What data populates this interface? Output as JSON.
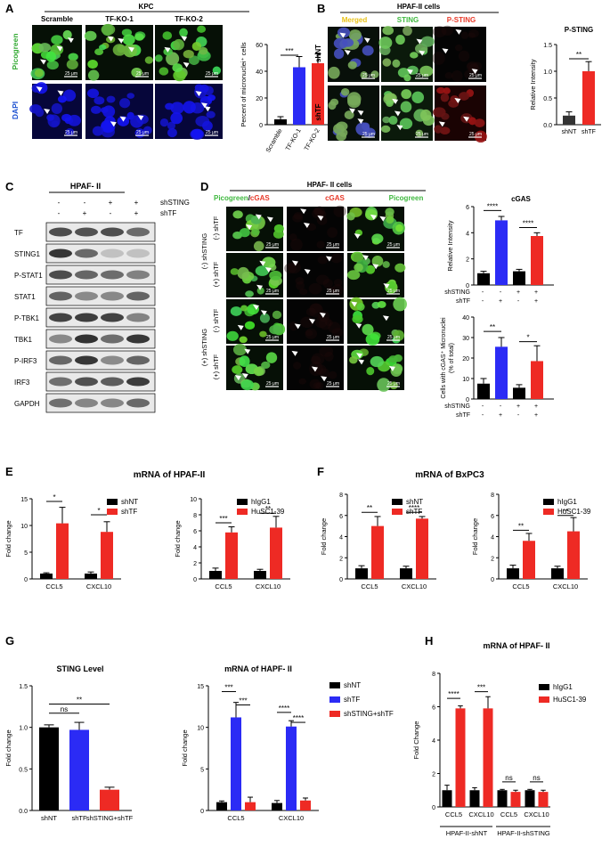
{
  "panels": {
    "A": {
      "letter": "A",
      "group_title": "KPC",
      "columns": [
        "Scramble",
        "TF-KO-1",
        "TF-KO-2"
      ],
      "rows": [
        "Picogreen",
        "DAPI"
      ],
      "scale_bar": "25 μm",
      "chart": {
        "type": "bar",
        "ylabel": "Percent of micronuclei⁺ cells",
        "categories": [
          "Scramble",
          "TF-KO-1",
          "TF-KO-2"
        ],
        "values": [
          4,
          43,
          46
        ],
        "errors": [
          2,
          8,
          7
        ],
        "ylim": [
          0,
          60
        ],
        "yticks": [
          "0",
          "20",
          "40",
          "60"
        ],
        "significance": [
          "***"
        ],
        "colors": [
          "#000000",
          "#2b2bf5",
          "#ee2a24"
        ]
      }
    },
    "B": {
      "letter": "B",
      "title": "HPAF-II cells",
      "columns": [
        "Merged",
        "STING",
        "P-STING"
      ],
      "rows": [
        "shNT",
        "shTF"
      ],
      "scale_bar": "25 μm",
      "chart": {
        "type": "bar",
        "title": "P-STING",
        "ylabel": "Relative Intensity",
        "categories": [
          "shNT",
          "shTF"
        ],
        "values": [
          0.17,
          1.0
        ],
        "errors": [
          0.07,
          0.18
        ],
        "ylim": [
          0,
          1.5
        ],
        "yticks": [
          "0.0",
          "0.5",
          "1.0",
          "1.5"
        ],
        "significance": [
          "**"
        ],
        "colors": [
          "#333333",
          "#ee2a24"
        ]
      }
    },
    "C": {
      "letter": "C",
      "title": "HPAF- II",
      "conditions": [
        {
          "label": "shSTING",
          "signs": [
            "-",
            "-",
            "+",
            "+"
          ]
        },
        {
          "label": "shTF",
          "signs": [
            "-",
            "+",
            "-",
            "+"
          ]
        }
      ],
      "blots": [
        "TF",
        "STING1",
        "P-STAT1",
        "STAT1",
        "P-TBK1",
        "TBK1",
        "P-IRF3",
        "IRF3",
        "GAPDH"
      ]
    },
    "D": {
      "letter": "D",
      "title": "HPAF- II cells",
      "col_title_green": "Picogreen",
      "col_title_slash": "/",
      "col_title_red": "cGAS",
      "columns_mid": "cGAS",
      "columns_right": "Picogreen",
      "group_labels": [
        "(-) shSTING",
        "(+) shSTING"
      ],
      "row_labels": [
        "(-) shTF",
        "(+) shTF",
        "(-) shTF",
        "(+) shTF"
      ],
      "scale_bar": "25 μm",
      "chart1": {
        "type": "bar",
        "title": "cGAS",
        "ylabel": "Relative Intensity",
        "values": [
          0.9,
          4.95,
          1.05,
          3.75
        ],
        "errors": [
          0.15,
          0.3,
          0.15,
          0.25
        ],
        "ylim": [
          0,
          6
        ],
        "yticks": [
          "0",
          "2",
          "4",
          "6"
        ],
        "significance": [
          "****",
          "****"
        ],
        "colors": [
          "#000000",
          "#2b2bf5",
          "#000000",
          "#ee2a24"
        ],
        "condition_rows": [
          {
            "label": "shSTING",
            "signs": [
              "-",
              "-",
              "+",
              "+"
            ]
          },
          {
            "label": "shTF",
            "signs": [
              "-",
              "+",
              "-",
              "+"
            ]
          }
        ]
      },
      "chart2": {
        "type": "bar",
        "ylabel": "Cells with cGAS⁺ Micronuclei (% of total)",
        "ylabel_line1": "Cells with cGAS⁺ Micronuclei",
        "ylabel_line2": "(% of total)",
        "values": [
          7.5,
          25.5,
          5.5,
          18.5
        ],
        "errors": [
          2.5,
          4.5,
          1.5,
          7.5
        ],
        "ylim": [
          0,
          40
        ],
        "yticks": [
          "0",
          "10",
          "20",
          "30",
          "40"
        ],
        "significance": [
          "**",
          "*"
        ],
        "colors": [
          "#000000",
          "#2b2bf5",
          "#000000",
          "#ee2a24"
        ],
        "condition_rows": [
          {
            "label": "shSTING",
            "signs": [
              "-",
              "-",
              "+",
              "+"
            ]
          },
          {
            "label": "shTF",
            "signs": [
              "-",
              "+",
              "-",
              "+"
            ]
          }
        ]
      }
    },
    "E": {
      "letter": "E",
      "title": "mRNA of HPAF-II",
      "chart1": {
        "type": "bar",
        "ylabel": "Fold change",
        "categories": [
          "CCL5",
          "CXCL10"
        ],
        "series": [
          {
            "name": "shNT",
            "color": "#000000",
            "values": [
              1.0,
              1.0
            ],
            "errors": [
              0.15,
              0.3
            ]
          },
          {
            "name": "shTF",
            "color": "#ee2a24",
            "values": [
              10.4,
              8.8
            ],
            "errors": [
              3.0,
              1.9
            ]
          }
        ],
        "ylim": [
          0,
          15
        ],
        "yticks": [
          "0",
          "5",
          "10",
          "15"
        ],
        "significance": [
          "*",
          "*"
        ]
      },
      "chart2": {
        "type": "bar",
        "ylabel": "Fold change",
        "categories": [
          "CCL5",
          "CXCL10"
        ],
        "series": [
          {
            "name": "hIgG1",
            "color": "#000000",
            "values": [
              1.0,
              1.0
            ],
            "errors": [
              0.35,
              0.2
            ]
          },
          {
            "name": "HuSC1-39",
            "color": "#ee2a24",
            "values": [
              5.8,
              6.4
            ],
            "errors": [
              0.7,
              1.4
            ]
          }
        ],
        "ylim": [
          0,
          10
        ],
        "yticks": [
          "0",
          "2",
          "4",
          "6",
          "8",
          "10"
        ],
        "significance": [
          "***",
          "**"
        ]
      }
    },
    "F": {
      "letter": "F",
      "title": "mRNA of BxPC3",
      "chart1": {
        "type": "bar",
        "ylabel": "Fold change",
        "categories": [
          "CCL5",
          "CXCL10"
        ],
        "series": [
          {
            "name": "shNT",
            "color": "#000000",
            "values": [
              1.0,
              1.0
            ],
            "errors": [
              0.25,
              0.2
            ]
          },
          {
            "name": "shTF",
            "color": "#ee2a24",
            "values": [
              5.0,
              5.7
            ],
            "errors": [
              0.9,
              0.2
            ]
          }
        ],
        "ylim": [
          0,
          8
        ],
        "yticks": [
          "0",
          "2",
          "4",
          "6",
          "8"
        ],
        "significance": [
          "**",
          "****"
        ]
      },
      "chart2": {
        "type": "bar",
        "ylabel": "Fold change",
        "categories": [
          "CCL5",
          "CXCL10"
        ],
        "series": [
          {
            "name": "hIgG1",
            "color": "#000000",
            "values": [
              1.0,
              1.0
            ],
            "errors": [
              0.3,
              0.2
            ]
          },
          {
            "name": "HuSC1-39",
            "color": "#ee2a24",
            "values": [
              3.6,
              4.5
            ],
            "errors": [
              0.7,
              1.3
            ]
          }
        ],
        "ylim": [
          0,
          8
        ],
        "yticks": [
          "0",
          "2",
          "4",
          "6",
          "8"
        ],
        "significance": [
          "**",
          "**"
        ]
      }
    },
    "G": {
      "letter": "G",
      "chart1": {
        "type": "bar",
        "title": "STING Level",
        "ylabel": "Fold change",
        "categories": [
          "shNT",
          "shTF",
          "shSTING+shTF"
        ],
        "values": [
          1.0,
          0.97,
          0.25
        ],
        "errors": [
          0.03,
          0.09,
          0.03
        ],
        "ylim": [
          0,
          1.5
        ],
        "yticks": [
          "0.0",
          "0.5",
          "1.0",
          "1.5"
        ],
        "colors": [
          "#000000",
          "#2b2bf5",
          "#ee2a24"
        ],
        "significance": [
          "ns",
          "**"
        ]
      },
      "chart2": {
        "type": "bar",
        "title": "mRNA of HAPF- II",
        "ylabel": "Fold change",
        "categories": [
          "CCL5",
          "CXCL10"
        ],
        "series": [
          {
            "name": "shNT",
            "color": "#000000",
            "values": [
              1.0,
              0.9
            ],
            "errors": [
              0.15,
              0.3
            ]
          },
          {
            "name": "shTF",
            "color": "#2b2bf5",
            "values": [
              11.2,
              10.1
            ],
            "errors": [
              1.8,
              0.7
            ]
          },
          {
            "name": "shSTING+shTF",
            "color": "#ee2a24",
            "values": [
              1.0,
              1.2
            ],
            "errors": [
              0.6,
              0.3
            ]
          }
        ],
        "ylim": [
          0,
          15
        ],
        "yticks": [
          "0",
          "5",
          "10",
          "15"
        ],
        "significance": [
          "***",
          "***",
          "****",
          "****"
        ]
      }
    },
    "H": {
      "letter": "H",
      "title": "mRNA of HPAF- II",
      "chart": {
        "type": "bar",
        "ylabel": "Fold Change",
        "categories": [
          "CCL5",
          "CXCL10",
          "CCL5",
          "CXCL10"
        ],
        "group_labels": [
          "HPAF-II-shNT",
          "HPAF-II-shSTING"
        ],
        "series": [
          {
            "name": "hIgG1",
            "color": "#000000",
            "values": [
              1.0,
              1.0,
              1.0,
              1.0
            ],
            "errors": [
              0.3,
              0.15,
              0.05,
              0.05
            ]
          },
          {
            "name": "HuSC1-39",
            "color": "#ee2a24",
            "values": [
              5.9,
              5.9,
              0.9,
              0.9
            ],
            "errors": [
              0.15,
              0.7,
              0.1,
              0.1
            ]
          }
        ],
        "ylim": [
          0,
          8
        ],
        "yticks": [
          "0",
          "2",
          "4",
          "6",
          "8"
        ],
        "significance": [
          "****",
          "***",
          "ns",
          "ns"
        ]
      }
    }
  }
}
